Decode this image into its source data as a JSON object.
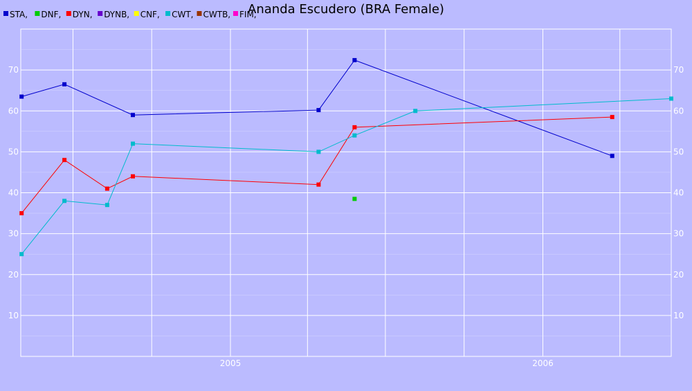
{
  "chart_data": {
    "type": "line",
    "title": "Ananda Escudero (BRA Female)",
    "legend": [
      "STA,",
      "DNF,",
      "DYN,",
      "DYNB,",
      "CNF,",
      "CWT,",
      "CWTB,",
      "FIM,"
    ],
    "legend_placement": "top-left",
    "grid": true,
    "x_axis": {
      "type": "date",
      "range": [
        "2004-05-01",
        "2006-05-31"
      ],
      "tick_labels": [
        "2005",
        "2006"
      ]
    },
    "y_axis": {
      "range": [
        0,
        80
      ],
      "ticks": [
        10,
        20,
        30,
        40,
        50,
        60,
        70
      ],
      "tick_labels": [
        "10",
        "20",
        "30",
        "40",
        "50",
        "60",
        "70"
      ]
    },
    "series": [
      {
        "name": "STA",
        "color": "#0000cc",
        "points": [
          {
            "x": "2004-05-02",
            "y": 63.5
          },
          {
            "x": "2004-06-21",
            "y": 66.5
          },
          {
            "x": "2004-09-09",
            "y": 59
          },
          {
            "x": "2005-04-14",
            "y": 60.2
          },
          {
            "x": "2005-05-26",
            "y": 72.4
          },
          {
            "x": "2006-03-23",
            "y": 49
          }
        ]
      },
      {
        "name": "DNF",
        "color": "#00cc00",
        "points": [
          {
            "x": "2005-05-26",
            "y": 38.5
          }
        ]
      },
      {
        "name": "DYN",
        "color": "#ff0000",
        "points": [
          {
            "x": "2004-05-02",
            "y": 35
          },
          {
            "x": "2004-06-21",
            "y": 48
          },
          {
            "x": "2004-08-10",
            "y": 41
          },
          {
            "x": "2004-09-09",
            "y": 44
          },
          {
            "x": "2005-04-14",
            "y": 42
          },
          {
            "x": "2005-05-26",
            "y": 56
          },
          {
            "x": "2006-03-23",
            "y": 58.5
          }
        ]
      },
      {
        "name": "DYNB",
        "color": "#6600cc",
        "points": []
      },
      {
        "name": "CNF",
        "color": "#ffff00",
        "points": []
      },
      {
        "name": "CWT",
        "color": "#00bbcc",
        "points": [
          {
            "x": "2004-05-02",
            "y": 25
          },
          {
            "x": "2004-06-21",
            "y": 38
          },
          {
            "x": "2004-08-10",
            "y": 37
          },
          {
            "x": "2004-09-09",
            "y": 52
          },
          {
            "x": "2005-04-14",
            "y": 50
          },
          {
            "x": "2005-05-26",
            "y": 54
          },
          {
            "x": "2005-08-05",
            "y": 60
          },
          {
            "x": "2006-05-31",
            "y": 63
          }
        ]
      },
      {
        "name": "CWTB",
        "color": "#993300",
        "points": []
      },
      {
        "name": "FIM",
        "color": "#ff00cc",
        "points": []
      }
    ]
  }
}
